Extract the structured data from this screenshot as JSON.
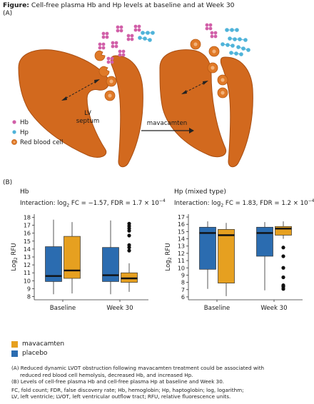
{
  "figure": {
    "title_bold": "Figure:",
    "title_rest": " Cell-free plasma Hb and Hp levels at baseline and at Week 30",
    "panel_a": "(A)",
    "panel_b": "(B)"
  },
  "diagram": {
    "septum_label_line1": "LV",
    "septum_label_line2": "septum",
    "arrow_label": "mavacamten",
    "legend": [
      {
        "label": "Hb",
        "color": "#d15fa8"
      },
      {
        "label": "Hp",
        "color": "#4fb3d9"
      },
      {
        "label": "Red blood cell",
        "color": "#e07a28"
      }
    ]
  },
  "colors": {
    "mavacamten": "#e6a020",
    "placebo": "#2b6cb0",
    "heart": "#d2691e",
    "heart_stroke": "#a84e12",
    "rbc": "#e07a28"
  },
  "chart_data": [
    {
      "type": "box",
      "title": "Hb",
      "interaction": {
        "prefix": "Interaction: log",
        "sub": "2",
        "fc": " FC = −1.57, FDR = 1.7 × 10",
        "exp": "−4"
      },
      "ylabel": "Log2 RFU",
      "ylabel_main": "Log",
      "ylabel_sub": "2",
      "ylabel_tail": " RFU",
      "ylim": [
        7.6,
        18.4
      ],
      "yticks": [
        8,
        9,
        10,
        11,
        12,
        13,
        14,
        15,
        16,
        17,
        18
      ],
      "categories": [
        "Baseline",
        "Week 30"
      ],
      "series": [
        {
          "name": "placebo",
          "boxes": [
            {
              "whisker_low": 8.3,
              "q1": 9.9,
              "median": 10.6,
              "q3": 14.3,
              "whisker_high": 17.7,
              "outliers": []
            },
            {
              "whisker_low": 8.3,
              "q1": 9.9,
              "median": 10.7,
              "q3": 14.2,
              "whisker_high": 17.6,
              "outliers": []
            }
          ]
        },
        {
          "name": "mavacamten",
          "boxes": [
            {
              "whisker_low": 8.4,
              "q1": 10.3,
              "median": 11.3,
              "q3": 15.6,
              "whisker_high": 17.4,
              "outliers": []
            },
            {
              "whisker_low": 8.6,
              "q1": 9.8,
              "median": 10.3,
              "q3": 11.0,
              "whisker_high": 12.2,
              "outliers": [
                13.8,
                14.2,
                14.5,
                15.7,
                16.3,
                16.6,
                16.9,
                17.2
              ]
            }
          ]
        }
      ]
    },
    {
      "type": "box",
      "title": "Hp (mixed type)",
      "interaction": {
        "prefix": "Interaction: log",
        "sub": "2",
        "fc": " FC = 1.83, FDR = 1.2 × 10",
        "exp": "−4"
      },
      "ylabel": "Log2 RFU",
      "ylabel_main": "Log",
      "ylabel_sub": "2",
      "ylabel_tail": " RFU",
      "ylim": [
        5.6,
        17.4
      ],
      "yticks": [
        6,
        7,
        8,
        9,
        10,
        11,
        12,
        13,
        14,
        15,
        16,
        17
      ],
      "categories": [
        "Baseline",
        "Week 30"
      ],
      "series": [
        {
          "name": "placebo",
          "boxes": [
            {
              "whisker_low": 7.1,
              "q1": 9.8,
              "median": 14.8,
              "q3": 15.6,
              "whisker_high": 16.4,
              "outliers": []
            },
            {
              "whisker_low": 6.9,
              "q1": 11.6,
              "median": 14.8,
              "q3": 15.6,
              "whisker_high": 16.3,
              "outliers": []
            }
          ]
        },
        {
          "name": "mavacamten",
          "boxes": [
            {
              "whisker_low": 6.1,
              "q1": 7.9,
              "median": 14.5,
              "q3": 15.3,
              "whisker_high": 16.2,
              "outliers": []
            },
            {
              "whisker_low": 14.0,
              "q1": 14.5,
              "median": 15.4,
              "q3": 15.7,
              "whisker_high": 16.4,
              "outliers": [
                7.1,
                7.4,
                7.6,
                8.7,
                10.0,
                11.6,
                12.8
              ]
            }
          ]
        }
      ]
    }
  ],
  "legend": [
    {
      "label": "mavacamten",
      "color": "#e6a020"
    },
    {
      "label": "placebo",
      "color": "#2b6cb0"
    }
  ],
  "footnotes": {
    "a1": "(A) Reduced dynamic LVOT obstruction following mavacamten treatment could be associated with",
    "a2": "reduced red blood cell hemolysis, decreased Hb, and increased Hp.",
    "b1": "(B) Levels of cell-free plasma Hb and cell-free plasma Hp at baseline and Week 30.",
    "abbr1": "FC, fold count; FDR, false discovery rate; Hb, hemoglobin; Hp, haptoglobin; log, logarithm;",
    "abbr2": "LV, left ventricle; LVOT, left ventricular outflow tract; RFU, relative fluorescence units."
  }
}
